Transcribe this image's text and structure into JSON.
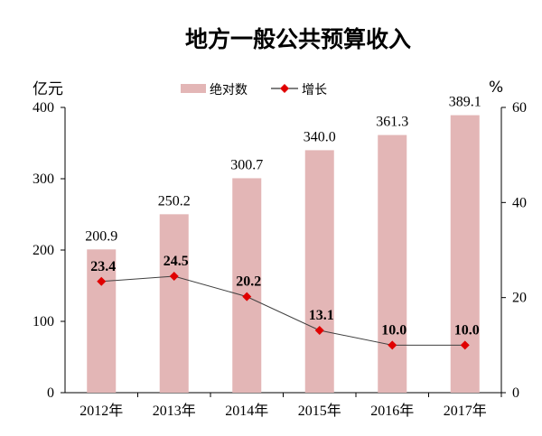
{
  "chart_data": {
    "type": "bar",
    "title": "地方一般公共预算收入",
    "categories": [
      "2012年",
      "2013年",
      "2014年",
      "2015年",
      "2016年",
      "2017年"
    ],
    "series": [
      {
        "name": "绝对数",
        "type": "bar",
        "axis": "left",
        "values": [
          200.9,
          250.2,
          300.7,
          340.0,
          361.3,
          389.1
        ],
        "color": "#e3b6b6"
      },
      {
        "name": "增长",
        "type": "line",
        "axis": "right",
        "values": [
          23.4,
          24.5,
          20.2,
          13.1,
          10.0,
          10.0
        ],
        "color": "#e00000",
        "line_color": "#404040"
      }
    ],
    "ylabel_left": "亿元",
    "ylabel_right": "%",
    "ylim_left": [
      0,
      400
    ],
    "yticks_left": [
      0,
      100,
      200,
      300,
      400
    ],
    "ylim_right": [
      0,
      60
    ],
    "yticks_right": [
      0,
      20,
      40,
      60
    ],
    "grid": false,
    "legend": "top"
  }
}
